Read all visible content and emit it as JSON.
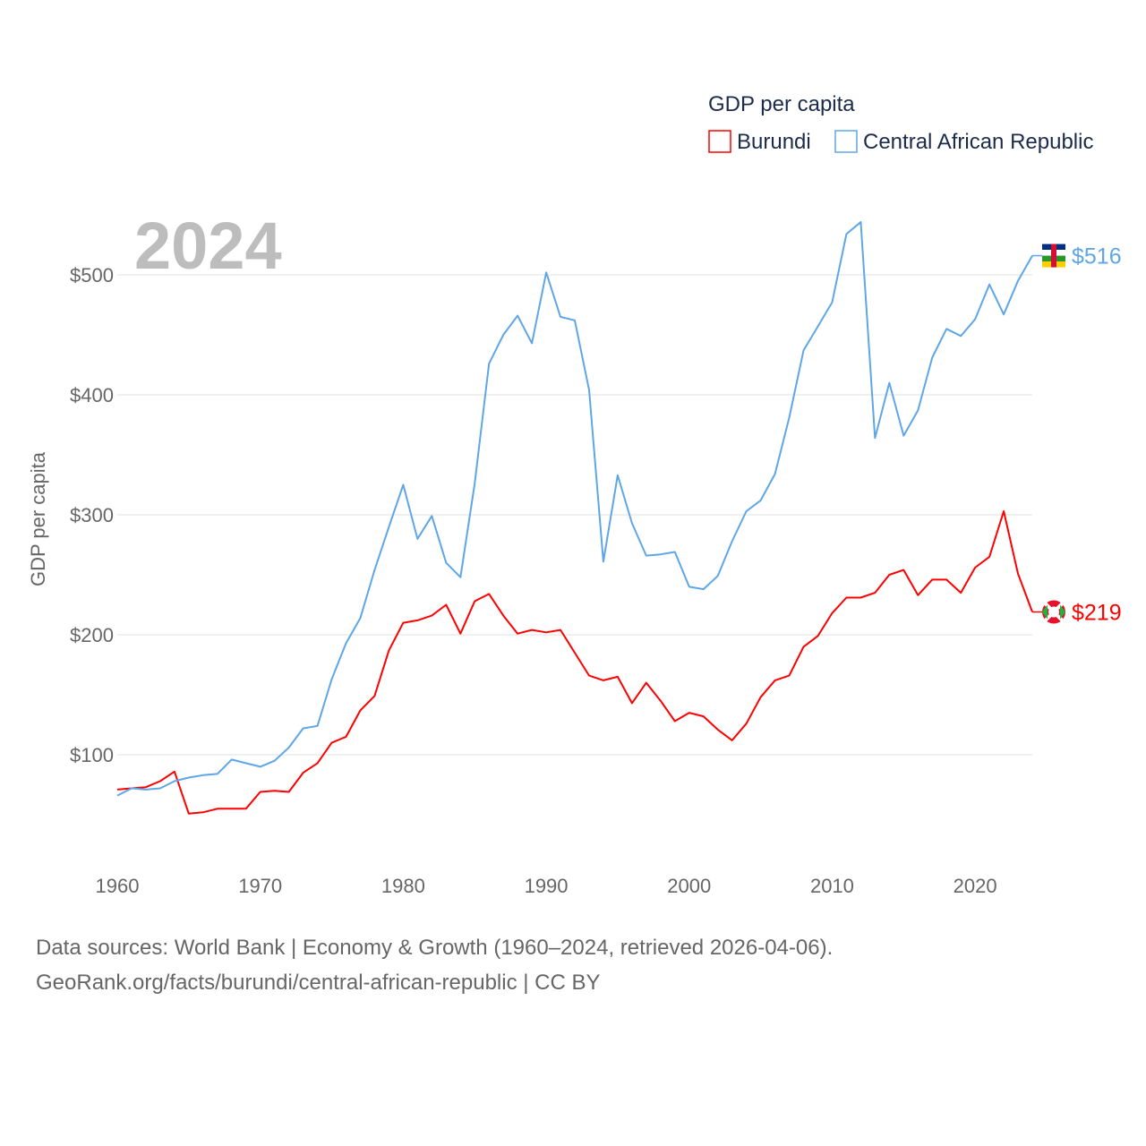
{
  "chart_data": {
    "type": "line",
    "title": "GDP per capita",
    "year_label": "2024",
    "xlabel": "",
    "ylabel": "GDP per capita",
    "xlim": [
      1960,
      2024
    ],
    "ylim": [
      30,
      560
    ],
    "x_ticks": [
      1960,
      1970,
      1980,
      1990,
      2000,
      2010,
      2020
    ],
    "y_ticks": [
      100,
      200,
      300,
      400,
      500
    ],
    "y_tick_labels": [
      "$100",
      "$200",
      "$300",
      "$400",
      "$500"
    ],
    "grid": true,
    "legend_placement": "top-right",
    "x": [
      1960,
      1961,
      1962,
      1963,
      1964,
      1965,
      1966,
      1967,
      1968,
      1969,
      1970,
      1971,
      1972,
      1973,
      1974,
      1975,
      1976,
      1977,
      1978,
      1979,
      1980,
      1981,
      1982,
      1983,
      1984,
      1985,
      1986,
      1987,
      1988,
      1989,
      1990,
      1991,
      1992,
      1993,
      1994,
      1995,
      1996,
      1997,
      1998,
      1999,
      2000,
      2001,
      2002,
      2003,
      2004,
      2005,
      2006,
      2007,
      2008,
      2009,
      2010,
      2011,
      2012,
      2013,
      2014,
      2015,
      2016,
      2017,
      2018,
      2019,
      2020,
      2021,
      2022,
      2023,
      2024
    ],
    "series": [
      {
        "name": "Burundi",
        "color": "#ff0000",
        "end_label": "$219",
        "values": [
          71,
          72,
          73,
          78,
          86,
          51,
          52,
          55,
          55,
          55,
          69,
          70,
          69,
          85,
          93,
          110,
          115,
          137,
          149,
          187,
          210,
          212,
          216,
          225,
          201,
          228,
          234,
          216,
          201,
          204,
          202,
          204,
          185,
          166,
          162,
          165,
          143,
          160,
          145,
          128,
          135,
          132,
          121,
          112,
          126,
          148,
          162,
          166,
          190,
          199,
          218,
          231,
          231,
          235,
          250,
          254,
          233,
          246,
          246,
          235,
          256,
          265,
          303,
          251,
          219
        ]
      },
      {
        "name": "Central African Republic",
        "color": "#5ea6e8",
        "end_label": "$516",
        "values": [
          66,
          72,
          71,
          72,
          78,
          81,
          83,
          84,
          96,
          93,
          90,
          95,
          106,
          122,
          124,
          163,
          193,
          214,
          254,
          290,
          325,
          280,
          299,
          260,
          248,
          326,
          426,
          450,
          466,
          443,
          502,
          465,
          462,
          404,
          261,
          333,
          293,
          266,
          267,
          269,
          240,
          238,
          249,
          278,
          303,
          312,
          334,
          381,
          437,
          457,
          477,
          534,
          544,
          364,
          410,
          366,
          387,
          431,
          455,
          449,
          463,
          492,
          467,
          495,
          516
        ]
      }
    ]
  },
  "footer": {
    "line1": "Data sources: World Bank | Economy & Growth (1960–2024, retrieved 2026-04-06).",
    "line2": "GeoRank.org/facts/burundi/central-african-republic | CC BY"
  }
}
